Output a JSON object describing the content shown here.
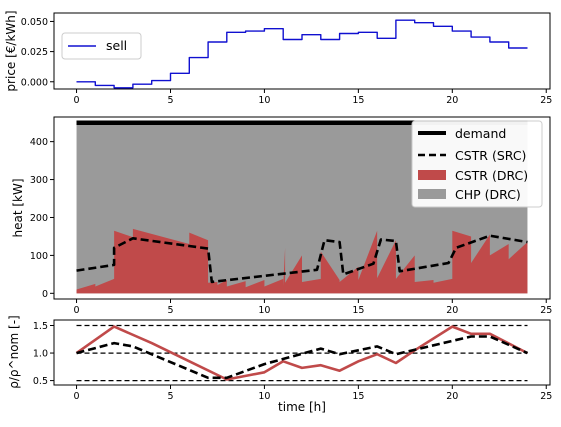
{
  "chart_data": [
    {
      "type": "line",
      "panel": "price",
      "ylabel": "price [€/kWh]",
      "xlim": [
        -1.2,
        25.2
      ],
      "ylim": [
        -0.006,
        0.057
      ],
      "xticks": [
        "0",
        "5",
        "10",
        "15",
        "20",
        "25"
      ],
      "yticks": [
        "0.000",
        "0.025",
        "0.050"
      ],
      "ytick_values": [
        0.0,
        0.025,
        0.05
      ],
      "legend": "top-left",
      "series": [
        {
          "name": "sell",
          "color": "#1010d0",
          "style": "step-post",
          "x": [
            0,
            1,
            2,
            3,
            4,
            5,
            6,
            7,
            8,
            9,
            10,
            11,
            12,
            13,
            14,
            15,
            16,
            17,
            18,
            19,
            20,
            21,
            22,
            23,
            24
          ],
          "values": [
            0.0,
            -0.003,
            -0.005,
            -0.002,
            0.001,
            0.007,
            0.02,
            0.033,
            0.041,
            0.042,
            0.044,
            0.035,
            0.039,
            0.035,
            0.04,
            0.041,
            0.036,
            0.051,
            0.049,
            0.046,
            0.042,
            0.037,
            0.033,
            0.028,
            0.028
          ]
        }
      ]
    },
    {
      "type": "area",
      "panel": "heat",
      "ylabel": "heat [kW]",
      "xlim": [
        -1.2,
        25.2
      ],
      "ylim": [
        -15,
        465
      ],
      "xticks": [
        "0",
        "5",
        "10",
        "15",
        "20",
        "25"
      ],
      "yticks": [
        "0",
        "100",
        "200",
        "300",
        "400"
      ],
      "ytick_values": [
        0,
        100,
        200,
        300,
        400
      ],
      "legend": "top-right",
      "series": [
        {
          "name": "demand",
          "color": "#000000",
          "style": "solid-thick",
          "x": [
            0,
            24
          ],
          "values": [
            450,
            450
          ]
        },
        {
          "name": "CSTR (SRC)",
          "color": "#000000",
          "style": "dashed",
          "x": [
            0,
            2,
            2,
            3,
            7,
            7.2,
            12.8,
            13.2,
            14,
            14.2,
            15.8,
            16.2,
            17,
            17.2,
            19.8,
            20.2,
            22,
            24
          ],
          "values": [
            60,
            75,
            120,
            145,
            118,
            30,
            62,
            140,
            135,
            50,
            78,
            142,
            138,
            58,
            80,
            120,
            152,
            135
          ]
        },
        {
          "name": "CSTR (DRC)",
          "color": "#c04a4a",
          "style": "fill",
          "x": [
            0,
            0,
            1,
            1,
            2,
            2,
            3,
            3,
            6,
            6,
            7,
            7,
            7.5,
            7.5,
            8,
            8,
            9,
            9,
            10,
            10,
            11,
            11,
            11.1,
            11.1,
            12,
            12,
            13,
            13,
            14,
            14,
            15,
            15,
            16,
            16,
            17,
            17,
            18,
            18,
            19,
            19,
            20,
            20,
            21,
            21,
            22,
            22,
            23,
            23,
            24,
            24
          ],
          "values": [
            0,
            10,
            25,
            18,
            38,
            165,
            148,
            170,
            130,
            160,
            140,
            28,
            30,
            22,
            35,
            18,
            32,
            16,
            35,
            18,
            38,
            20,
            120,
            28,
            100,
            30,
            38,
            110,
            35,
            30,
            70,
            35,
            165,
            40,
            140,
            38,
            100,
            30,
            35,
            28,
            38,
            165,
            150,
            80,
            155,
            100,
            130,
            90,
            135,
            0
          ]
        },
        {
          "name": "CHP (DRC)",
          "color": "#9a9a9a",
          "style": "fill",
          "x": [
            0,
            24
          ],
          "values": [
            450,
            450
          ]
        }
      ]
    },
    {
      "type": "line",
      "panel": "rho",
      "xlabel": "time [h]",
      "ylabel": "ρ/ρ^nom [-]",
      "xlim": [
        -1.2,
        25.2
      ],
      "ylim": [
        0.42,
        1.6
      ],
      "xticks": [
        "0",
        "5",
        "10",
        "15",
        "20",
        "25"
      ],
      "yticks": [
        "0.5",
        "1.0",
        "1.5"
      ],
      "ytick_values": [
        0.5,
        1.0,
        1.5
      ],
      "series": [
        {
          "name": "ref-1.5",
          "color": "#000000",
          "style": "dashed-thin",
          "x": [
            0,
            24
          ],
          "values": [
            1.5,
            1.5
          ]
        },
        {
          "name": "ref-1.0",
          "color": "#000000",
          "style": "dashed-thin",
          "x": [
            0,
            24
          ],
          "values": [
            1.0,
            1.0
          ]
        },
        {
          "name": "ref-0.5",
          "color": "#000000",
          "style": "dashed-thin",
          "x": [
            0,
            24
          ],
          "values": [
            0.5,
            0.5
          ]
        },
        {
          "name": "CSTR (DRC)",
          "color": "#c04a4a",
          "style": "solid",
          "x": [
            0,
            2,
            4,
            6,
            8,
            10,
            11,
            12,
            13,
            14,
            15,
            16,
            17,
            18,
            20,
            21,
            22,
            24
          ],
          "values": [
            1.0,
            1.48,
            1.18,
            0.85,
            0.52,
            0.65,
            0.85,
            0.73,
            0.78,
            0.68,
            0.85,
            0.98,
            0.82,
            1.05,
            1.48,
            1.35,
            1.35,
            1.0
          ]
        },
        {
          "name": "CSTR (SRC)",
          "color": "#000000",
          "style": "dashed",
          "x": [
            0,
            2,
            3,
            7,
            8,
            10,
            13,
            14,
            16,
            17,
            20,
            21,
            22,
            24
          ],
          "values": [
            1.0,
            1.18,
            1.12,
            0.55,
            0.55,
            0.8,
            1.08,
            0.98,
            1.12,
            0.98,
            1.22,
            1.3,
            1.3,
            1.0
          ]
        }
      ]
    }
  ]
}
